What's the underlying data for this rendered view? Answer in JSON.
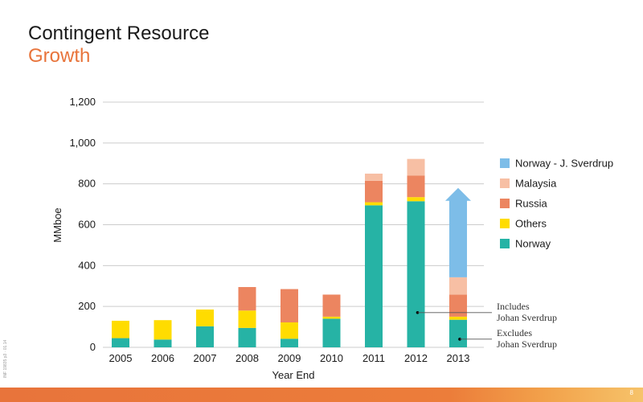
{
  "header": {
    "title": "Contingent Resource",
    "subtitle": "Growth"
  },
  "side_code": "INF 19835 p3 · 01.14",
  "page_number": "8",
  "colors": {
    "norway": "#26b3a5",
    "others": "#ffdc00",
    "russia": "#ec8560",
    "malaysia": "#f7bfa4",
    "sverdrup": "#7dbde8",
    "grid": "#cccccc",
    "axis_text": "#1a1a1a"
  },
  "chart_data": {
    "type": "bar",
    "stacked": true,
    "title": "",
    "xlabel": "Year End",
    "ylabel": "MMboe",
    "ylim": [
      0,
      1200
    ],
    "yticks": [
      0,
      200,
      400,
      600,
      800,
      1000,
      1200
    ],
    "ytick_labels": [
      "0",
      "200",
      "400",
      "600",
      "800",
      "1,000",
      "1,200"
    ],
    "grid": true,
    "legend_position": "right",
    "categories": [
      "2005",
      "2006",
      "2007",
      "2008",
      "2009",
      "2010",
      "2011",
      "2012",
      "2013"
    ],
    "series": [
      {
        "name": "Norway",
        "color_key": "norway",
        "values": [
          45,
          38,
          103,
          95,
          42,
          140,
          695,
          715,
          135
        ]
      },
      {
        "name": "Others",
        "color_key": "others",
        "values": [
          85,
          95,
          82,
          85,
          80,
          10,
          15,
          20,
          15
        ]
      },
      {
        "name": "Russia",
        "color_key": "russia",
        "values": [
          0,
          0,
          0,
          115,
          163,
          108,
          105,
          105,
          108
        ]
      },
      {
        "name": "Malaysia",
        "color_key": "malaysia",
        "values": [
          0,
          0,
          0,
          0,
          0,
          0,
          35,
          82,
          85
        ]
      }
    ],
    "sverdrup_arrow": {
      "name": "Norway - J. Sverdrup",
      "category": "2013",
      "from": 343,
      "to": 780,
      "color_key": "sverdrup"
    },
    "legend": [
      {
        "label": "Norway - J. Sverdrup",
        "color_key": "sverdrup"
      },
      {
        "label": "Malaysia",
        "color_key": "malaysia"
      },
      {
        "label": "Russia",
        "color_key": "russia"
      },
      {
        "label": "Others",
        "color_key": "others"
      },
      {
        "label": "Norway",
        "color_key": "norway"
      }
    ],
    "annotations": [
      {
        "lines": [
          "Includes",
          "Johan Sverdrup"
        ],
        "category": "2012",
        "value": 170
      },
      {
        "lines": [
          "Excludes",
          "Johan Sverdrup"
        ],
        "category": "2013",
        "value": 40
      }
    ]
  }
}
